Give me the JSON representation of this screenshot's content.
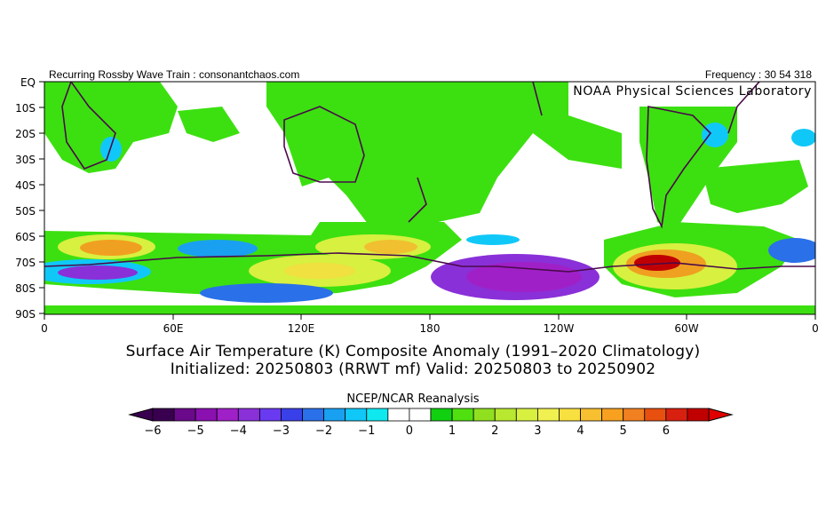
{
  "header": {
    "left": "Recurring Rossby Wave Train : consonantchaos.com",
    "right": "Frequency : 30 54 318",
    "credit": "NOAA Physical Sciences Laboratory"
  },
  "map": {
    "lat_labels": [
      "EQ",
      "10S",
      "20S",
      "30S",
      "40S",
      "50S",
      "60S",
      "70S",
      "80S",
      "90S"
    ],
    "lon_labels": [
      "0",
      "60E",
      "120E",
      "180",
      "120W",
      "60W",
      "0"
    ]
  },
  "title": {
    "line1": "Surface Air Temperature (K) Composite Anomaly (1991–2020 Climatology)",
    "line2": "Initialized: 20250803 (RRWT mf) Valid: 20250803 to 20250902"
  },
  "colorbar": {
    "title": "NCEP/NCAR Reanalysis",
    "tick_labels": [
      "−6",
      "−5",
      "−4",
      "−3",
      "−2",
      "−1",
      "0",
      "1",
      "2",
      "3",
      "4",
      "5",
      "6"
    ],
    "colors": [
      "#3a0050",
      "#6a0a8a",
      "#8a10b0",
      "#a020c8",
      "#8a30d8",
      "#6a3af0",
      "#3a40e8",
      "#2a70e8",
      "#1aa0f0",
      "#10c8f8",
      "#10e8f0",
      "#ffffff",
      "#ffffff",
      "#10d010",
      "#50e010",
      "#90e020",
      "#b8e830",
      "#d8f040",
      "#f0f050",
      "#f8e040",
      "#f8c030",
      "#f8a020",
      "#f08020",
      "#e85010",
      "#d82010",
      "#c00000"
    ]
  }
}
